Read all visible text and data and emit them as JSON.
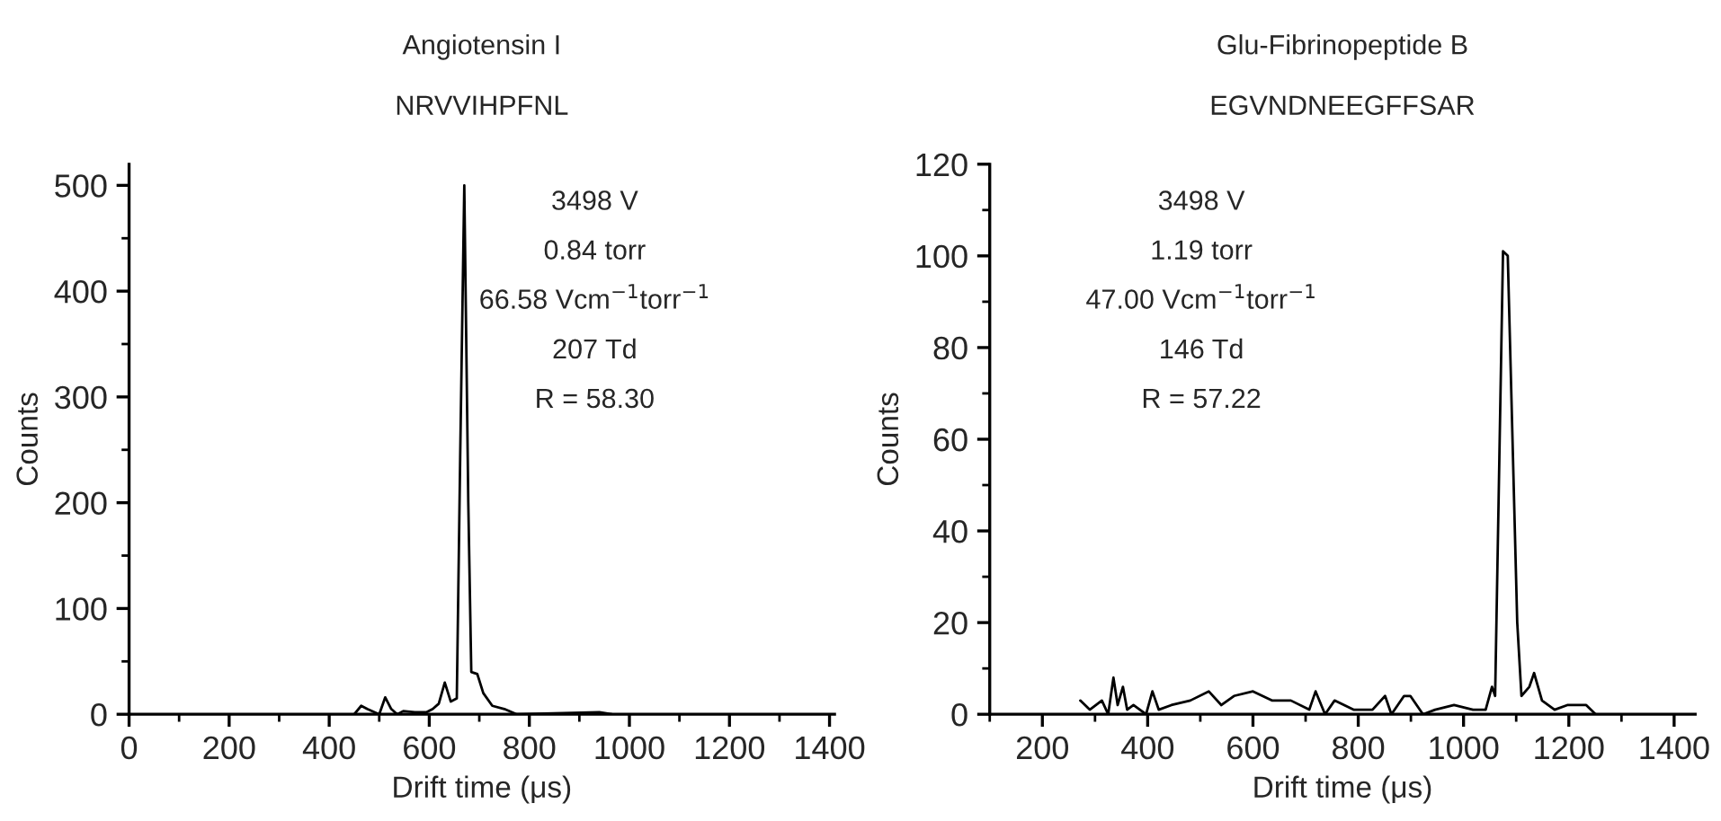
{
  "chart_data": [
    {
      "type": "line",
      "title": "Angiotensin I",
      "subtitle": "NRVVIHPFNL",
      "xlabel": "Drift time (μs)",
      "ylabel": "Counts",
      "annotations": [
        "3498 V",
        "0.84 torr",
        "66.58 Vcm$^{−1}$torr$^{−1}$",
        "207 Td",
        "R = 58.30"
      ],
      "xlim": [
        0,
        1410
      ],
      "ylim": [
        0,
        520
      ],
      "xticks": [
        0,
        {
          "value": 100,
          "label": null
        },
        200,
        {
          "value": 300,
          "label": null
        },
        400,
        {
          "value": 500,
          "label": null
        },
        600,
        {
          "value": 700,
          "label": null
        },
        800,
        {
          "value": 900,
          "label": null
        },
        1000,
        {
          "value": 1100,
          "label": null
        },
        1200,
        {
          "value": 1300,
          "label": null
        },
        1400
      ],
      "yticks": [
        0,
        {
          "value": 50,
          "label": null
        },
        100,
        {
          "value": 150,
          "label": null
        },
        200,
        {
          "value": 250,
          "label": null
        },
        300,
        {
          "value": 350,
          "label": null
        },
        400,
        {
          "value": 450,
          "label": null
        },
        500
      ],
      "grid": false,
      "legend": false,
      "series": [
        {
          "color": "#000000",
          "x": [
            450,
            464,
            476,
            500,
            512,
            524,
            536,
            548,
            571,
            595,
            607,
            619,
            631,
            643,
            655,
            662,
            670,
            678,
            684,
            696,
            708,
            726,
            750,
            775,
            940,
            965
          ],
          "values": [
            0,
            8,
            5,
            0,
            16,
            5,
            0,
            3,
            2,
            2,
            5,
            10,
            30,
            12,
            15,
            250,
            500,
            200,
            40,
            38,
            20,
            8,
            5,
            0,
            2,
            0
          ]
        }
      ]
    },
    {
      "type": "line",
      "title": "Glu-Fibrinopeptide B",
      "subtitle": "EGVNDNEEGFFSAR",
      "xlabel": "Drift time (μs)",
      "ylabel": "Counts",
      "annotations": [
        "3498 V",
        "1.19 torr",
        "47.00 Vcm$^{−1}$torr$^{−1}$",
        "146 Td",
        "R = 57.22"
      ],
      "xlim": [
        100,
        1440
      ],
      "ylim": [
        0,
        120
      ],
      "xticks": [
        {
          "value": 100,
          "label": null
        },
        200,
        {
          "value": 300,
          "label": null
        },
        400,
        {
          "value": 500,
          "label": null
        },
        600,
        {
          "value": 700,
          "label": null
        },
        800,
        {
          "value": 900,
          "label": null
        },
        1000,
        {
          "value": 1100,
          "label": null
        },
        1200,
        {
          "value": 1300,
          "label": null
        },
        1400
      ],
      "yticks": [
        0,
        {
          "value": 10,
          "label": null
        },
        20,
        {
          "value": 30,
          "label": null
        },
        40,
        {
          "value": 50,
          "label": null
        },
        60,
        {
          "value": 70,
          "label": null
        },
        80,
        {
          "value": 90,
          "label": null
        },
        100,
        {
          "value": 110,
          "label": null
        },
        120
      ],
      "grid": false,
      "legend": false,
      "series": [
        {
          "color": "#000000",
          "x": [
            272,
            290,
            313,
            325,
            335,
            343,
            353,
            361,
            373,
            397,
            409,
            421,
            445,
            481,
            516,
            540,
            564,
            600,
            636,
            672,
            707,
            719,
            737,
            755,
            791,
            827,
            851,
            863,
            887,
            899,
            923,
            946,
            982,
            1018,
            1042,
            1054,
            1060,
            1075,
            1084,
            1102,
            1110,
            1125,
            1134,
            1149,
            1173,
            1197,
            1233,
            1251
          ],
          "values": [
            3,
            1,
            3,
            0,
            8,
            2,
            6,
            1,
            2,
            0,
            5,
            1,
            2,
            3,
            5,
            2,
            4,
            5,
            3,
            3,
            1,
            5,
            0,
            3,
            1,
            1,
            4,
            0,
            4,
            4,
            0,
            1,
            2,
            1,
            1,
            6,
            4,
            101,
            100,
            20,
            4,
            6,
            9,
            3,
            1,
            2,
            2,
            0
          ]
        }
      ]
    }
  ]
}
